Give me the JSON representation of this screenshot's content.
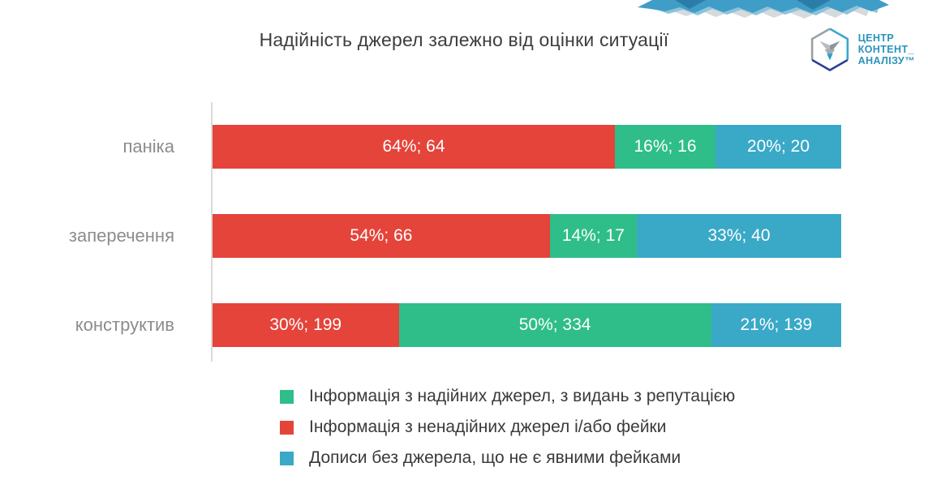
{
  "title": "Надійність джерел залежно від оцінки ситуації",
  "logo": {
    "line1": "ЦЕНТР",
    "line2": "КОНТЕНТ_",
    "line3": "АНАЛІЗУ™"
  },
  "colors": {
    "red": "#e4443a",
    "green": "#2fbe89",
    "blue": "#39a9c7",
    "title_text": "#3d3d3d",
    "category_label": "#8c8c8c",
    "legend_text": "#3a3a3a",
    "axis_line": "#dadada",
    "logo_text": "#2a93bd",
    "banner_blue": "#3f9dc7",
    "banner_light_blue": "#8cc3dc",
    "banner_gray": "#d6dadd"
  },
  "chart_data": {
    "type": "bar",
    "stacked": true,
    "orientation": "horizontal",
    "title": "Надійність джерел залежно від оцінки ситуації",
    "categories": [
      "паніка",
      "заперечення",
      "конструктив"
    ],
    "value_label_format": "{percent}%; {count}",
    "series": [
      {
        "name": "Інформація з ненадійних джерел і/або фейки",
        "color_key": "red",
        "percents": [
          64,
          54,
          30
        ],
        "counts": [
          64,
          66,
          199
        ]
      },
      {
        "name": "Інформація з надійних джерел, з видань з репутацією",
        "color_key": "green",
        "percents": [
          16,
          14,
          50
        ],
        "counts": [
          16,
          17,
          334
        ]
      },
      {
        "name": "Дописи без джерела, що не є явними фейками",
        "color_key": "blue",
        "percents": [
          20,
          33,
          21
        ],
        "counts": [
          20,
          40,
          139
        ]
      }
    ],
    "legend_position": "bottom",
    "grid": false
  },
  "legend": {
    "items": [
      {
        "label": "Інформація з надійних джерел, з видань з репутацією",
        "color_key": "green"
      },
      {
        "label": "Інформація з ненадійних джерел і/або фейки",
        "color_key": "red"
      },
      {
        "label": "Дописи без джерела, що не є явними фейками",
        "color_key": "blue"
      }
    ]
  }
}
